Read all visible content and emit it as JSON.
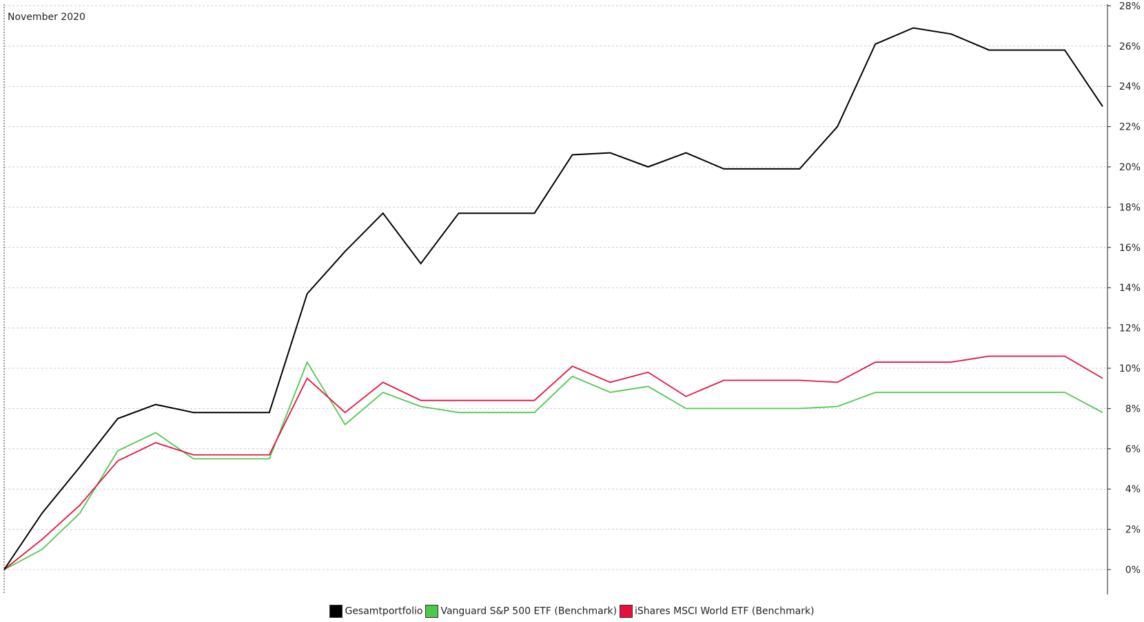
{
  "chart_data": {
    "type": "line",
    "title": "",
    "xlabel": "",
    "ylabel": "",
    "period_label": "November 2020",
    "ylim": [
      -1.2,
      28
    ],
    "yticks": [
      0,
      2,
      4,
      6,
      8,
      10,
      12,
      14,
      16,
      18,
      20,
      22,
      24,
      26,
      28
    ],
    "ytick_labels": [
      "0%",
      "2%",
      "4%",
      "6%",
      "8%",
      "10%",
      "12%",
      "14%",
      "16%",
      "18%",
      "20%",
      "22%",
      "24%",
      "26%",
      "28%"
    ],
    "grid": true,
    "legend_position": "bottom-center",
    "series": [
      {
        "name": "Gesamtportfolio",
        "color": "#000000",
        "values": [
          0,
          2.8,
          5.1,
          7.5,
          8.2,
          7.8,
          7.8,
          7.8,
          13.7,
          15.8,
          17.7,
          15.2,
          17.7,
          17.7,
          17.7,
          20.6,
          20.7,
          20.0,
          20.7,
          19.9,
          19.9,
          19.9,
          22.0,
          26.1,
          26.9,
          26.6,
          25.8,
          25.8,
          25.8,
          23.0
        ]
      },
      {
        "name": "Vanguard S&P 500 ETF (Benchmark)",
        "color": "#4cc94c",
        "values": [
          0,
          1.0,
          2.8,
          5.9,
          6.8,
          5.5,
          5.5,
          5.5,
          10.3,
          7.2,
          8.8,
          8.1,
          7.8,
          7.8,
          7.8,
          9.6,
          8.8,
          9.1,
          8.0,
          8.0,
          8.0,
          8.0,
          8.1,
          8.8,
          8.8,
          8.8,
          8.8,
          8.8,
          8.8,
          7.8
        ]
      },
      {
        "name": "iShares MSCI World ETF (Benchmark)",
        "color": "#e8103c",
        "values": [
          0,
          1.5,
          3.2,
          5.4,
          6.3,
          5.7,
          5.7,
          5.7,
          9.5,
          7.8,
          9.3,
          8.4,
          8.4,
          8.4,
          8.4,
          10.1,
          9.3,
          9.8,
          8.6,
          9.4,
          9.4,
          9.4,
          9.3,
          10.3,
          10.3,
          10.3,
          10.6,
          10.6,
          10.6,
          9.5
        ]
      }
    ]
  }
}
